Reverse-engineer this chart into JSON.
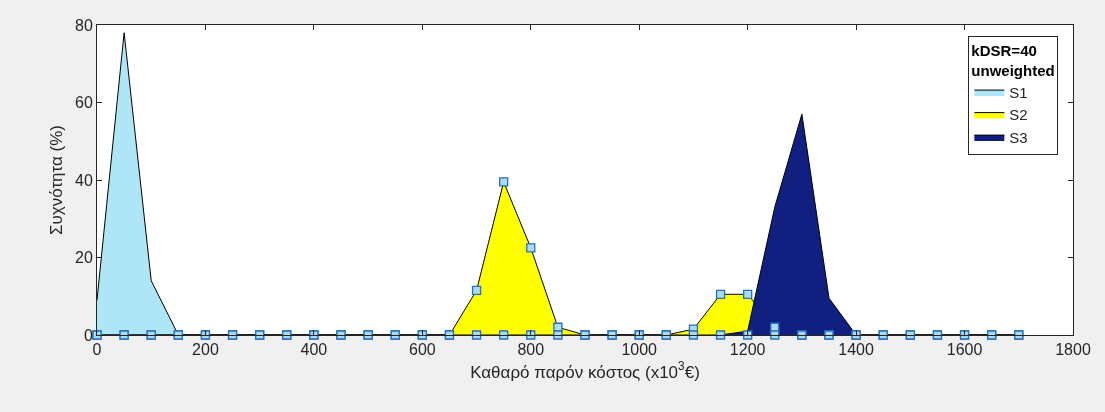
{
  "chart_data": {
    "type": "area",
    "xlabel": "Καθαρό παρόν κόστος (x10$^{3}$€)",
    "ylabel": "Συχνότητα (%)",
    "legend_title": "kDSR=40\nunweighted",
    "x": [
      0,
      50,
      100,
      150,
      200,
      250,
      300,
      350,
      400,
      450,
      500,
      550,
      600,
      650,
      700,
      750,
      800,
      850,
      900,
      950,
      1000,
      1050,
      1100,
      1150,
      1200,
      1250,
      1300,
      1350,
      1400,
      1450,
      1500,
      1550,
      1600,
      1650,
      1700
    ],
    "series": [
      {
        "name": "S1",
        "color": "#aee6f8",
        "values": [
          9,
          78,
          14,
          0,
          0,
          0,
          0,
          0,
          0,
          0,
          0,
          0,
          0,
          0,
          0,
          0,
          0,
          0,
          0,
          0,
          0,
          0,
          0,
          0,
          0,
          0,
          0,
          0,
          0,
          0,
          0,
          0,
          0,
          0,
          0
        ]
      },
      {
        "name": "S2",
        "color": "#ffff00",
        "values": [
          0,
          0,
          0,
          0,
          0,
          0,
          0,
          0,
          0,
          0,
          0,
          0,
          0,
          0,
          11.5,
          39.5,
          22.5,
          2,
          0,
          0,
          0,
          0,
          1.5,
          10.5,
          10.5,
          2,
          0,
          0,
          0,
          0,
          0,
          0,
          0,
          0,
          0
        ]
      },
      {
        "name": "S3",
        "color": "#112080",
        "values": [
          0,
          0,
          0,
          0,
          0,
          0,
          0,
          0,
          0,
          0,
          0,
          0,
          0,
          0,
          0,
          0,
          0,
          0,
          0,
          0,
          0,
          0,
          0,
          0,
          1,
          33,
          57,
          9.5,
          0,
          0,
          0,
          0,
          0,
          0,
          0
        ]
      },
      {
        "type": "scatter",
        "marker": "square",
        "color": "#a9dcf5",
        "values": [
          0,
          0,
          0,
          0,
          0,
          0,
          0,
          0,
          0,
          0,
          0,
          0,
          0,
          0,
          11.5,
          39.5,
          22.5,
          2,
          0,
          0,
          0,
          0,
          1.5,
          10.5,
          10.5,
          2,
          0,
          0,
          0,
          0,
          0,
          0,
          0,
          0,
          0
        ]
      },
      {
        "type": "scatter",
        "marker": "square",
        "color": "#a9dcf5",
        "values": [
          0,
          0,
          0,
          0,
          0,
          0,
          0,
          0,
          0,
          0,
          0,
          0,
          0,
          0,
          0,
          0,
          0,
          0,
          0,
          0,
          0,
          0,
          0,
          0,
          0,
          0,
          0,
          0,
          0,
          0,
          0,
          0,
          0,
          0,
          0
        ]
      }
    ],
    "xlim": [
      0,
      1800
    ],
    "xticks": [
      0,
      200,
      400,
      600,
      800,
      1000,
      1200,
      1400,
      1600,
      1800
    ],
    "ylim": [
      0,
      80
    ],
    "yticks": [
      0,
      20,
      40,
      60,
      80
    ],
    "grid": false,
    "legend": "top right"
  }
}
